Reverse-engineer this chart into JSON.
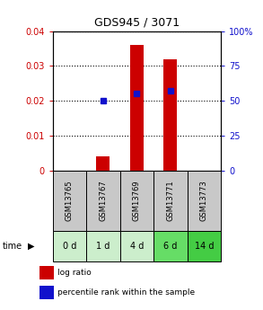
{
  "title": "GDS945 / 3071",
  "categories": [
    "GSM13765",
    "GSM13767",
    "GSM13769",
    "GSM13771",
    "GSM13773"
  ],
  "time_labels": [
    "0 d",
    "1 d",
    "4 d",
    "6 d",
    "14 d"
  ],
  "log_ratio": [
    0.0,
    0.004,
    0.036,
    0.032,
    0.0
  ],
  "percentile_rank": [
    null,
    50,
    55,
    57,
    null
  ],
  "bar_color": "#cc0000",
  "dot_color": "#1111cc",
  "ylim_left": [
    0,
    0.04
  ],
  "ylim_right": [
    0,
    100
  ],
  "yticks_left": [
    0,
    0.01,
    0.02,
    0.03,
    0.04
  ],
  "ytick_labels_left": [
    "0",
    "0.01",
    "0.02",
    "0.03",
    "0.04"
  ],
  "yticks_right": [
    0,
    25,
    50,
    75,
    100
  ],
  "ytick_labels_right": [
    "0",
    "25",
    "50",
    "75",
    "100%"
  ],
  "sample_bg": "#c8c8c8",
  "time_colors": [
    "#cceecc",
    "#cceecc",
    "#cceecc",
    "#66dd66",
    "#44cc44"
  ],
  "legend_log_ratio": "log ratio",
  "legend_percentile": "percentile rank within the sample",
  "time_label": "time"
}
